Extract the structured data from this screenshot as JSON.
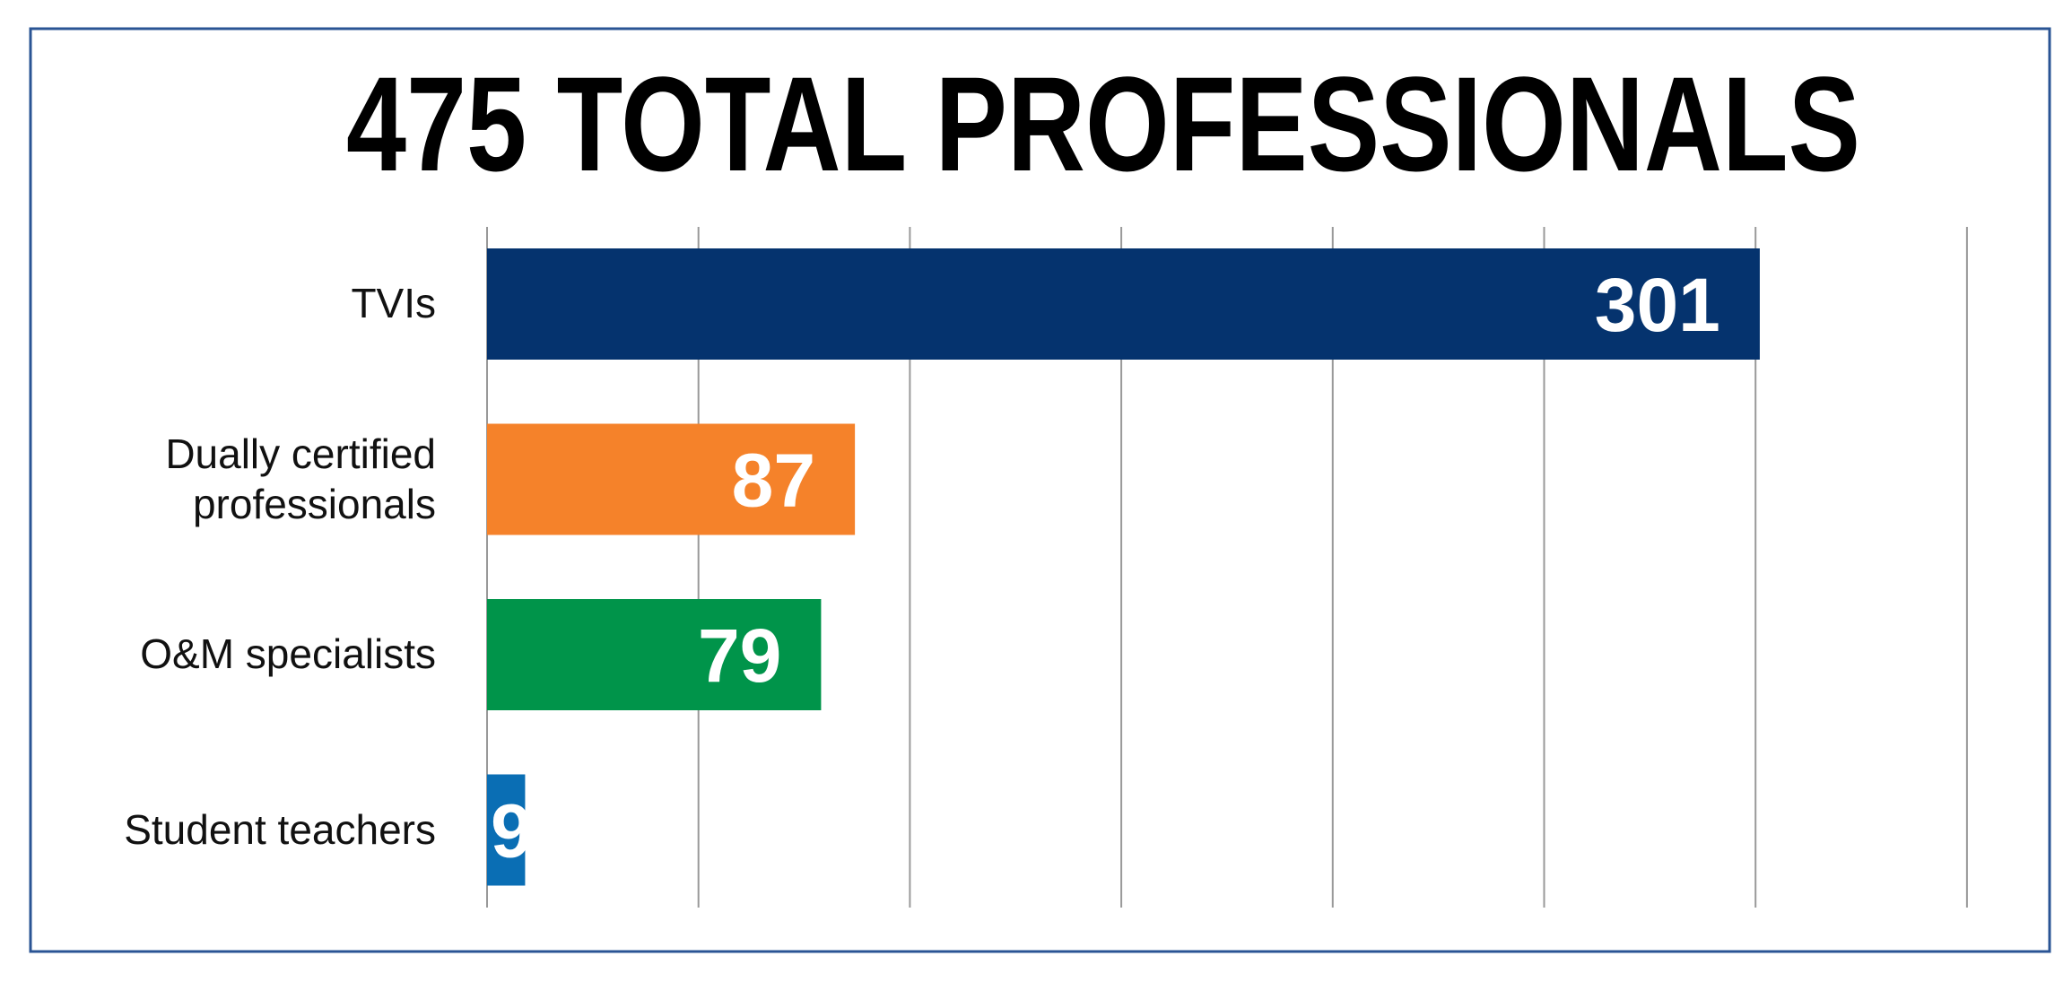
{
  "chart_data": {
    "type": "hbar",
    "title": "475 TOTAL PROFESSIONALS",
    "categories": [
      "TVIs",
      "Dually certified professionals",
      "O&M specialists",
      "Student teachers"
    ],
    "values": [
      301,
      87,
      79,
      9
    ],
    "colors": [
      "#05336e",
      "#f5822a",
      "#00944a",
      "#0a6eb4"
    ],
    "xlim": [
      0,
      350
    ],
    "xticks": [
      0,
      50,
      100,
      150,
      200,
      250,
      300,
      350
    ],
    "grid": true
  }
}
